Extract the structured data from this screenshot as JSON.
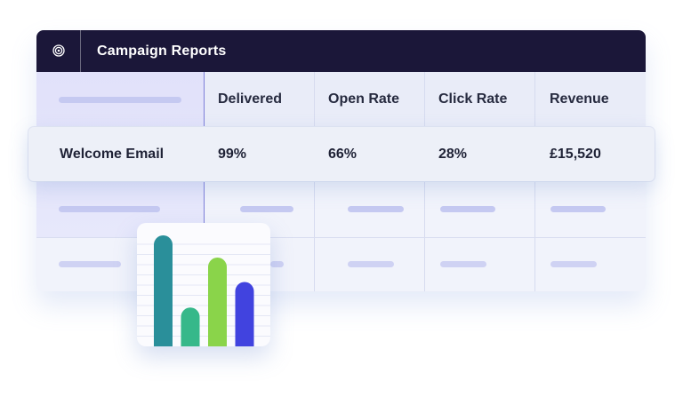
{
  "title_bar": {
    "title": "Campaign Reports",
    "icon": "target-icon"
  },
  "table": {
    "columns": [
      "Delivered",
      "Open Rate",
      "Click Rate",
      "Revenue"
    ],
    "highlighted_row": {
      "name": "Welcome Email",
      "values": [
        "99%",
        "66%",
        "28%",
        "£15,520"
      ]
    }
  },
  "colors": {
    "title_bar_bg": "#1b1739",
    "row_band": "#e1e1fa"
  },
  "chart_data": {
    "type": "bar",
    "categories": [
      "",
      "",
      "",
      ""
    ],
    "values": [
      100,
      35,
      80,
      58
    ],
    "ylim": [
      0,
      100
    ],
    "grid": true,
    "colors": [
      "#2a8f9a",
      "#36b88a",
      "#8ad44a",
      "#4143df"
    ]
  }
}
